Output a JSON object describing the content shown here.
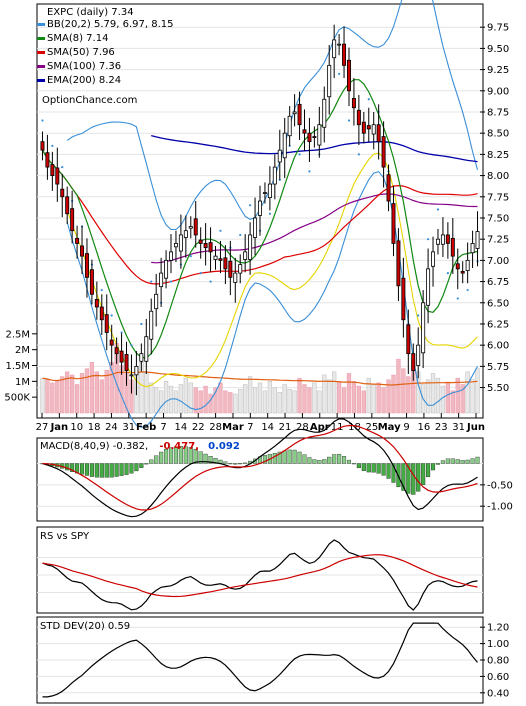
{
  "chart_data": [
    {
      "type": "candlestick",
      "name": "price",
      "ylim": [
        5.2,
        10.0
      ],
      "yticks": [
        "9.75",
        "9.50",
        "9.25",
        "9.00",
        "8.75",
        "8.50",
        "8.25",
        "8.00",
        "7.75",
        "7.50",
        "7.25",
        "7.00",
        "6.75",
        "6.50",
        "6.25",
        "6.00",
        "5.75",
        "5.50"
      ],
      "legend": {
        "ticker": "EXPC (daily) 7.34",
        "items": [
          {
            "label": "BB(20,2) 5.79, 6.97, 8.15",
            "color": "#3a8fd8"
          },
          {
            "label": "SMA(8) 7.14",
            "color": "#118811"
          },
          {
            "label": "SMA(50) 7.96",
            "color": "#dd0000"
          },
          {
            "label": "SMA(100) 7.36",
            "color": "#880088"
          },
          {
            "label": "EMA(200) 8.24",
            "color": "#0000aa"
          }
        ],
        "site": "OptionChance.com"
      },
      "closes": [
        8.3,
        8.1,
        8.0,
        7.9,
        7.75,
        7.55,
        7.35,
        7.2,
        7.05,
        6.8,
        6.6,
        6.45,
        6.3,
        6.15,
        6.0,
        5.9,
        5.8,
        5.7,
        5.65,
        5.75,
        5.9,
        6.1,
        6.4,
        6.6,
        6.85,
        7.0,
        7.1,
        7.2,
        7.3,
        7.35,
        7.4,
        7.3,
        7.2,
        7.15,
        7.1,
        7.05,
        7.0,
        6.9,
        6.8,
        6.85,
        6.95,
        7.1,
        7.3,
        7.5,
        7.7,
        7.8,
        7.9,
        8.1,
        8.3,
        8.5,
        8.7,
        8.75,
        8.6,
        8.5,
        8.4,
        8.45,
        8.6,
        8.9,
        9.3,
        9.6,
        9.55,
        9.3,
        9.0,
        8.8,
        8.6,
        8.5,
        8.55,
        8.6,
        8.4,
        8.1,
        7.7,
        7.2,
        6.7,
        6.3,
        5.9,
        5.7,
        6.0,
        6.5,
        6.9,
        7.1,
        7.25,
        7.3,
        7.2,
        7.05,
        6.9,
        6.85,
        7.0,
        7.2,
        7.34
      ],
      "volume_ylim": [
        0,
        3000000
      ],
      "volume_yticks": [
        "2.5M",
        "2M",
        "1.5M",
        "1M",
        "500K"
      ],
      "volume": [
        1100000,
        1050000,
        950000,
        1000000,
        1150000,
        1300000,
        1200000,
        900000,
        1250000,
        1400000,
        1600000,
        1300000,
        1050000,
        1350000,
        1600000,
        2200000,
        1500000,
        1250000,
        1050000,
        1400000,
        1600000,
        1300000,
        950000,
        800000,
        700000,
        1000000,
        850000,
        700000,
        900000,
        1100000,
        950000,
        800000,
        700000,
        850000,
        600000,
        800000,
        950000,
        700000,
        650000,
        600000,
        750000,
        900000,
        1150000,
        800000,
        950000,
        700000,
        1000000,
        800000,
        650000,
        900000,
        750000,
        700000,
        1100000,
        900000,
        800000,
        950000,
        700000,
        1200000,
        1050000,
        1300000,
        1000000,
        800000,
        1250000,
        1000000,
        850000,
        700000,
        1100000,
        900000,
        950000,
        800000,
        1050000,
        1200000,
        1700000,
        1400000,
        1150000,
        1650000,
        1300000,
        900000,
        1050000,
        1250000,
        1100000,
        850000,
        950000,
        700000,
        1100000,
        900000,
        1300000,
        1050000,
        1400000
      ],
      "xlabels": [
        "27",
        "Jan",
        "10",
        "18",
        "24",
        "31",
        "Feb",
        "7",
        "14",
        "22",
        "28",
        "Mar",
        "7",
        "14",
        "21",
        "28",
        "Apr",
        "11",
        "18",
        "25",
        "May",
        "9",
        "16",
        "23",
        "31",
        "Jun"
      ],
      "xlabel_bold": [
        "Jan",
        "Feb",
        "Mar",
        "Apr",
        "May",
        "Jun"
      ]
    },
    {
      "type": "line",
      "name": "macd",
      "title": "MACD(8,40,9) -0.382,",
      "values_label": [
        "-0.477,",
        "0.092"
      ],
      "ylim": [
        -1.3,
        0.55
      ],
      "yticks": [
        "-0.50",
        "-1.00"
      ]
    },
    {
      "type": "line",
      "name": "rs",
      "title": "RS vs SPY"
    },
    {
      "type": "line",
      "name": "std",
      "title": "STD DEV(20) 0.59",
      "ylim": [
        0.3,
        1.3
      ],
      "yticks": [
        "1.20",
        "1.00",
        "0.80",
        "0.60",
        "0.40"
      ]
    }
  ],
  "colors": {
    "bb": "#3a8fd8",
    "sma8": "#118811",
    "sma50": "#dd0000",
    "sma100": "#880088",
    "ema200": "#0000aa",
    "psar": "#3a8fd8",
    "lower_yellow": "#e6d400",
    "up_fill": "#ffffff",
    "down_fill": "#cc0000",
    "macd": "#000000",
    "signal": "#cc0000",
    "hist_pos": "#88cc88",
    "hist_neg": "#44aa44",
    "vol_up": "#e8e8e8",
    "vol_down": "#f2b8c2",
    "vol_avg": "#e06010"
  }
}
